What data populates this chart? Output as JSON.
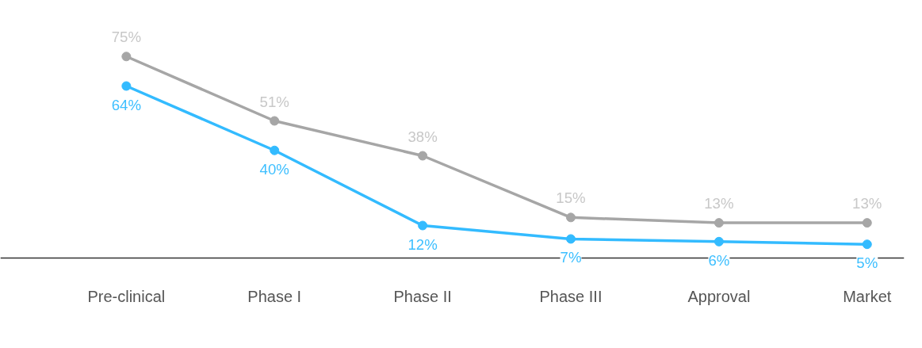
{
  "chart_data": {
    "type": "line",
    "categories": [
      "Pre-clinical",
      "Phase I",
      "Phase II",
      "Phase III",
      "Approval",
      "Market"
    ],
    "series": [
      {
        "color": "#33bbff",
        "values": [
          64,
          40,
          12,
          7,
          6,
          5
        ],
        "value_labels": [
          "64%",
          "40%",
          "12%",
          "7%",
          "6%",
          "5%"
        ]
      },
      {
        "color": "#a6a6a6",
        "values": [
          75,
          51,
          38,
          15,
          13,
          13
        ],
        "value_labels": [
          "75%",
          "51%",
          "38%",
          "15%",
          "13%",
          "13%"
        ]
      }
    ],
    "marker": "circle",
    "line_style": "solid",
    "tick_labels": "x",
    "grid": false
  }
}
